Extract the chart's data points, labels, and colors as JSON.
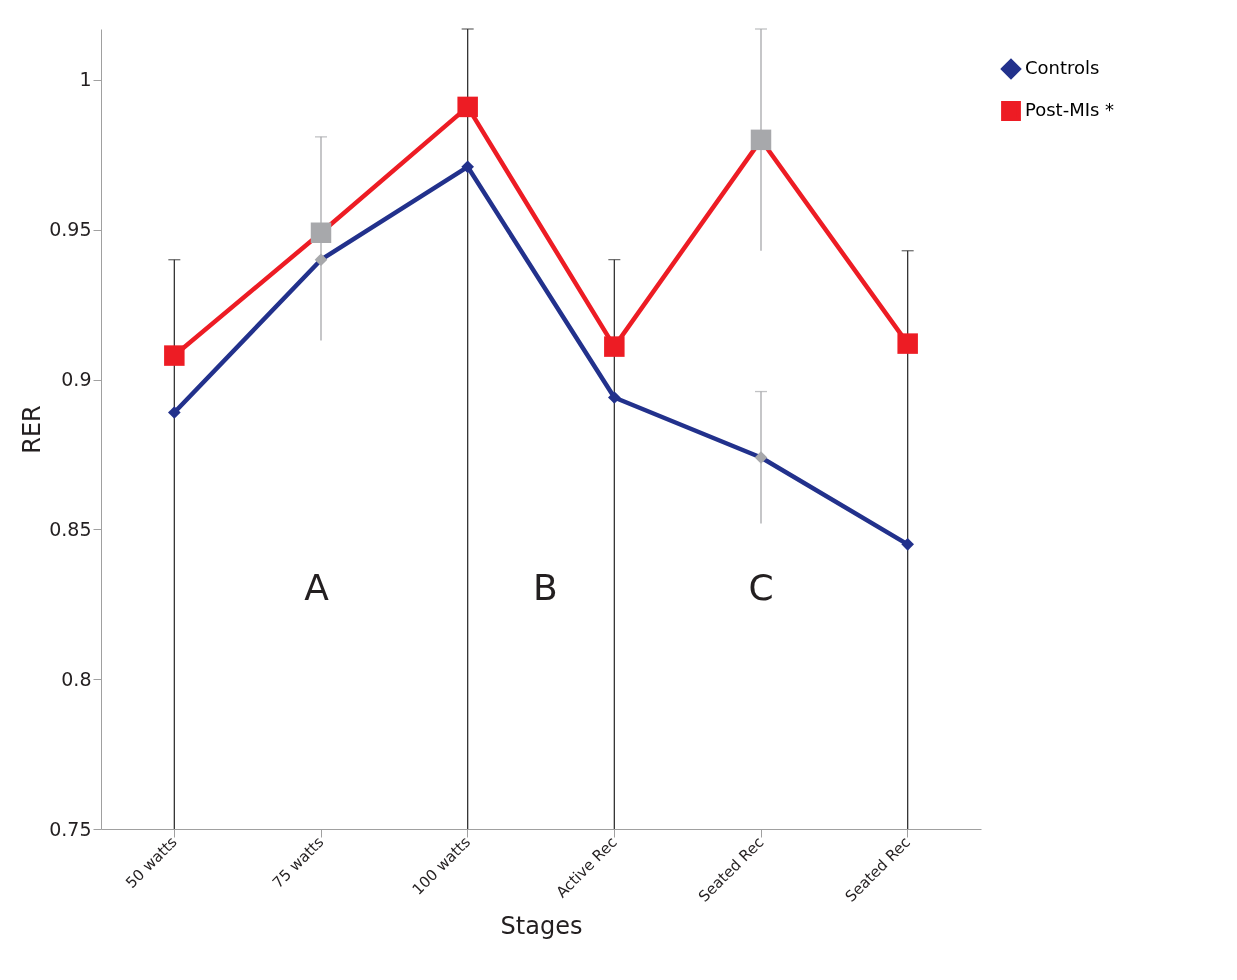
{
  "chart_data": {
    "type": "line",
    "xlabel": "Stages",
    "ylabel": "RER",
    "categories": [
      "50 watts",
      "75 watts",
      "100 watts",
      "Active Rec",
      "Seated Rec",
      "Seated Rec"
    ],
    "series": [
      {
        "name": "Controls",
        "color": "#22318c",
        "marker": "diamond",
        "values": [
          0.889,
          0.94,
          0.971,
          0.894,
          0.874,
          0.845
        ],
        "colors": [
          "#22318c",
          "#a7a8ab",
          "#22318c",
          "#22318c",
          "#a7a8ab",
          "#22318c"
        ],
        "errors": [
          [
            0.75,
            0.94
          ],
          null,
          [
            0.75,
            1.017
          ],
          [
            0.75,
            0.94
          ],
          [
            0.852,
            0.896
          ],
          [
            0.75,
            0.943
          ]
        ]
      },
      {
        "name": "Post-MIs *",
        "color": "#ed1c24",
        "marker": "square",
        "values": [
          0.908,
          0.949,
          0.991,
          0.911,
          0.98,
          0.912
        ],
        "colors": [
          "#ed1c24",
          "#a7a8ab",
          "#ed1c24",
          "#ed1c24",
          "#a7a8ab",
          "#ed1c24"
        ],
        "errors": [
          null,
          [
            0.913,
            0.981
          ],
          null,
          null,
          [
            0.943,
            1.017
          ],
          null
        ]
      }
    ],
    "annotations": [
      "A",
      "B",
      "C"
    ],
    "ylim": [
      0.75,
      1.017
    ],
    "yticks": [
      0.75,
      0.8,
      0.85,
      0.9,
      0.95,
      1
    ],
    "grid": false,
    "legend": "top right",
    "line_style": "solid"
  }
}
